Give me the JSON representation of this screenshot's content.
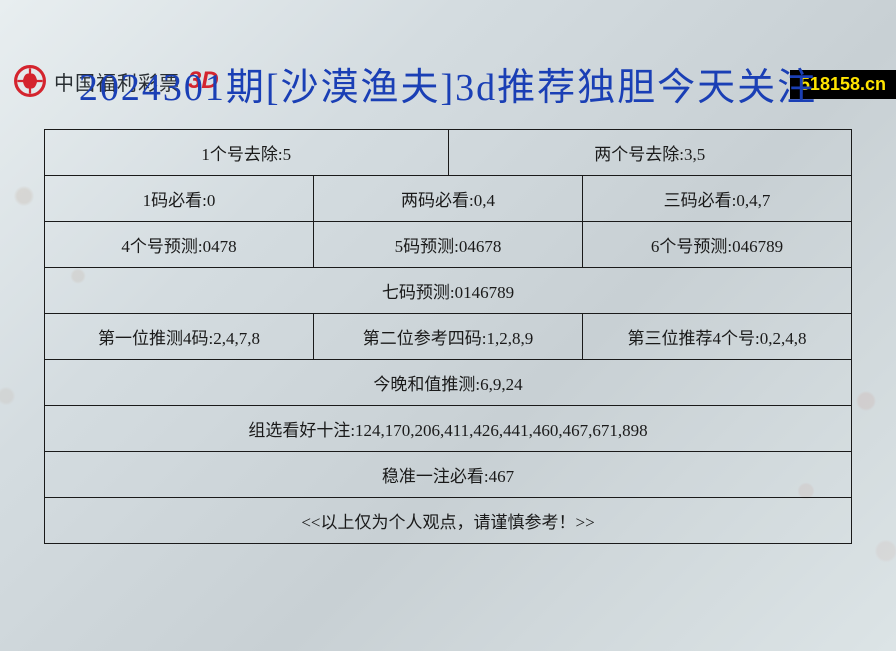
{
  "header": {
    "brand_text": "中国福利彩票",
    "brand_suffix": "3D",
    "brand_color": "#d4242e"
  },
  "watermark": {
    "text": "518158.cn",
    "bg": "#000000",
    "fg": "#ffe400"
  },
  "title": {
    "text": "2024301期[沙漠渔夫]3d推荐独胆今天关注",
    "color": "#1a3fb5",
    "fontsize": 38
  },
  "table": {
    "border_color": "#1a1a1a",
    "text_color": "#1a1a1a",
    "cell_fontsize": 17,
    "rows": [
      {
        "cols": 2,
        "cells": [
          "1个号去除:5",
          "两个号去除:3,5"
        ]
      },
      {
        "cols": 3,
        "cells": [
          "1码必看:0",
          "两码必看:0,4",
          "三码必看:0,4,7"
        ]
      },
      {
        "cols": 3,
        "cells": [
          "4个号预测:0478",
          "5码预测:04678",
          "6个号预测:046789"
        ]
      },
      {
        "cols": 1,
        "cells": [
          "七码预测:0146789"
        ]
      },
      {
        "cols": 3,
        "cells": [
          "第一位推测4码:2,4,7,8",
          "第二位参考四码:1,2,8,9",
          "第三位推荐4个号:0,2,4,8"
        ]
      },
      {
        "cols": 1,
        "cells": [
          "今晚和值推测:6,9,24"
        ]
      },
      {
        "cols": 1,
        "cells": [
          "组选看好十注:124,170,206,411,426,441,460,467,671,898"
        ]
      },
      {
        "cols": 1,
        "cells": [
          "稳准一注必看:467"
        ]
      },
      {
        "cols": 1,
        "cells": [
          "<<以上仅为个人观点，请谨慎参考！>>"
        ]
      }
    ]
  }
}
